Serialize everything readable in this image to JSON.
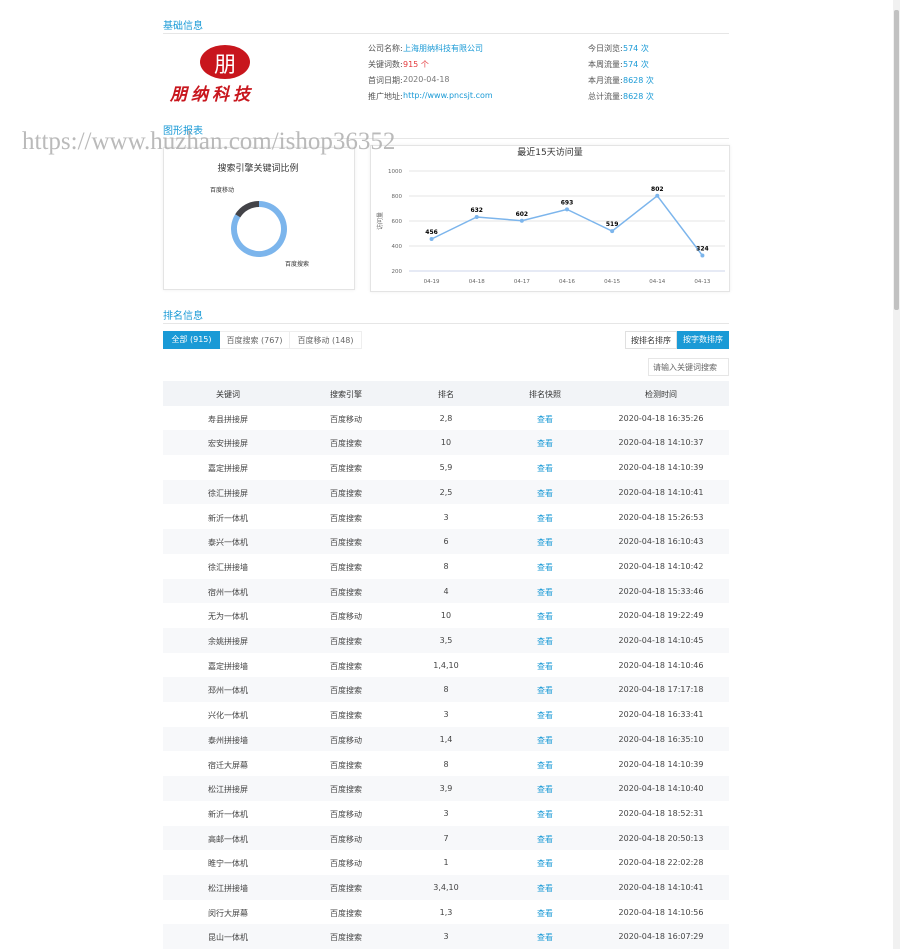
{
  "sections": {
    "basic": "基础信息",
    "charts": "图形报表",
    "ranking": "排名信息"
  },
  "logo": {
    "mark": "朋",
    "name": "朋纳科技"
  },
  "watermark": "https://www.huzhan.com/ishop36352",
  "info": [
    [
      {
        "label": "公司名称:",
        "value": "上海朋纳科技有限公司"
      },
      {
        "label": "关键词数:",
        "value": "915 个"
      },
      {
        "label": "首词日期:",
        "value": "2020-04-18"
      },
      {
        "label": "推广地址:",
        "value": "http://www.pncsjt.com"
      }
    ],
    [
      {
        "label": "今日浏览:",
        "value": "574 次"
      },
      {
        "label": "本周流量:",
        "value": "574 次"
      },
      {
        "label": "本月流量:",
        "value": "8628 次"
      },
      {
        "label": "总计流量:",
        "value": "8628 次"
      }
    ]
  ],
  "chart_data": [
    {
      "type": "pie",
      "title": "搜索引擎关键词比例",
      "categories": [
        "百度搜索",
        "百度移动"
      ],
      "values": [
        767,
        148
      ],
      "colors": [
        "#7cb5ec",
        "#434348"
      ]
    },
    {
      "type": "line",
      "title": "最近15天访问量",
      "y_label": "访问量",
      "categories": [
        "04-19",
        "04-18",
        "04-17",
        "04-16",
        "04-15",
        "04-14",
        "04-13"
      ],
      "values": [
        456,
        632,
        602,
        693,
        519,
        802,
        324
      ],
      "ylim": [
        200,
        1000
      ],
      "yticks": [
        200,
        400,
        600,
        800,
        1000
      ],
      "color": "#7cb5ec",
      "grid": true
    }
  ],
  "ranking": {
    "tabs": [
      "全部 (915)",
      "百度搜索 (767)",
      "百度移动 (148)"
    ],
    "sort_buttons": [
      "按排名排序",
      "按字数排序"
    ],
    "search_placeholder": "请输入关键词搜索",
    "table": {
      "header": [
        "关键词",
        "搜索引擎",
        "排名",
        "排名快照",
        "检测时间"
      ],
      "rows": [
        [
          "寿县拼接屏",
          "百度移动",
          "2,8",
          "查看",
          "2020-04-18 16:35:26"
        ],
        [
          "宏安拼接屏",
          "百度搜索",
          "10",
          "查看",
          "2020-04-18 14:10:37"
        ],
        [
          "嘉定拼接屏",
          "百度搜索",
          "5,9",
          "查看",
          "2020-04-18 14:10:39"
        ],
        [
          "徐汇拼接屏",
          "百度搜索",
          "2,5",
          "查看",
          "2020-04-18 14:10:41"
        ],
        [
          "新沂一体机",
          "百度搜索",
          "3",
          "查看",
          "2020-04-18 15:26:53"
        ],
        [
          "泰兴一体机",
          "百度搜索",
          "6",
          "查看",
          "2020-04-18 16:10:43"
        ],
        [
          "徐汇拼接墙",
          "百度搜索",
          "8",
          "查看",
          "2020-04-18 14:10:42"
        ],
        [
          "宿州一体机",
          "百度搜索",
          "4",
          "查看",
          "2020-04-18 15:33:46"
        ],
        [
          "无为一体机",
          "百度移动",
          "10",
          "查看",
          "2020-04-18 19:22:49"
        ],
        [
          "余姚拼接屏",
          "百度搜索",
          "3,5",
          "查看",
          "2020-04-18 14:10:45"
        ],
        [
          "嘉定拼接墙",
          "百度搜索",
          "1,4,10",
          "查看",
          "2020-04-18 14:10:46"
        ],
        [
          "邳州一体机",
          "百度搜索",
          "8",
          "查看",
          "2020-04-18 17:17:18"
        ],
        [
          "兴化一体机",
          "百度搜索",
          "3",
          "查看",
          "2020-04-18 16:33:41"
        ],
        [
          "泰州拼接墙",
          "百度移动",
          "1,4",
          "查看",
          "2020-04-18 16:35:10"
        ],
        [
          "宿迁大屏幕",
          "百度搜索",
          "8",
          "查看",
          "2020-04-18 14:10:39"
        ],
        [
          "松江拼接屏",
          "百度搜索",
          "3,9",
          "查看",
          "2020-04-18 14:10:40"
        ],
        [
          "新沂一体机",
          "百度移动",
          "3",
          "查看",
          "2020-04-18 18:52:31"
        ],
        [
          "高邮一体机",
          "百度移动",
          "7",
          "查看",
          "2020-04-18 20:50:13"
        ],
        [
          "睢宁一体机",
          "百度移动",
          "1",
          "查看",
          "2020-04-18 22:02:28"
        ],
        [
          "松江拼接墙",
          "百度搜索",
          "3,4,10",
          "查看",
          "2020-04-18 14:10:41"
        ],
        [
          "闵行大屏幕",
          "百度搜索",
          "1,3",
          "查看",
          "2020-04-18 14:10:56"
        ],
        [
          "昆山一体机",
          "百度搜索",
          "3",
          "查看",
          "2020-04-18 16:07:29"
        ]
      ]
    }
  }
}
